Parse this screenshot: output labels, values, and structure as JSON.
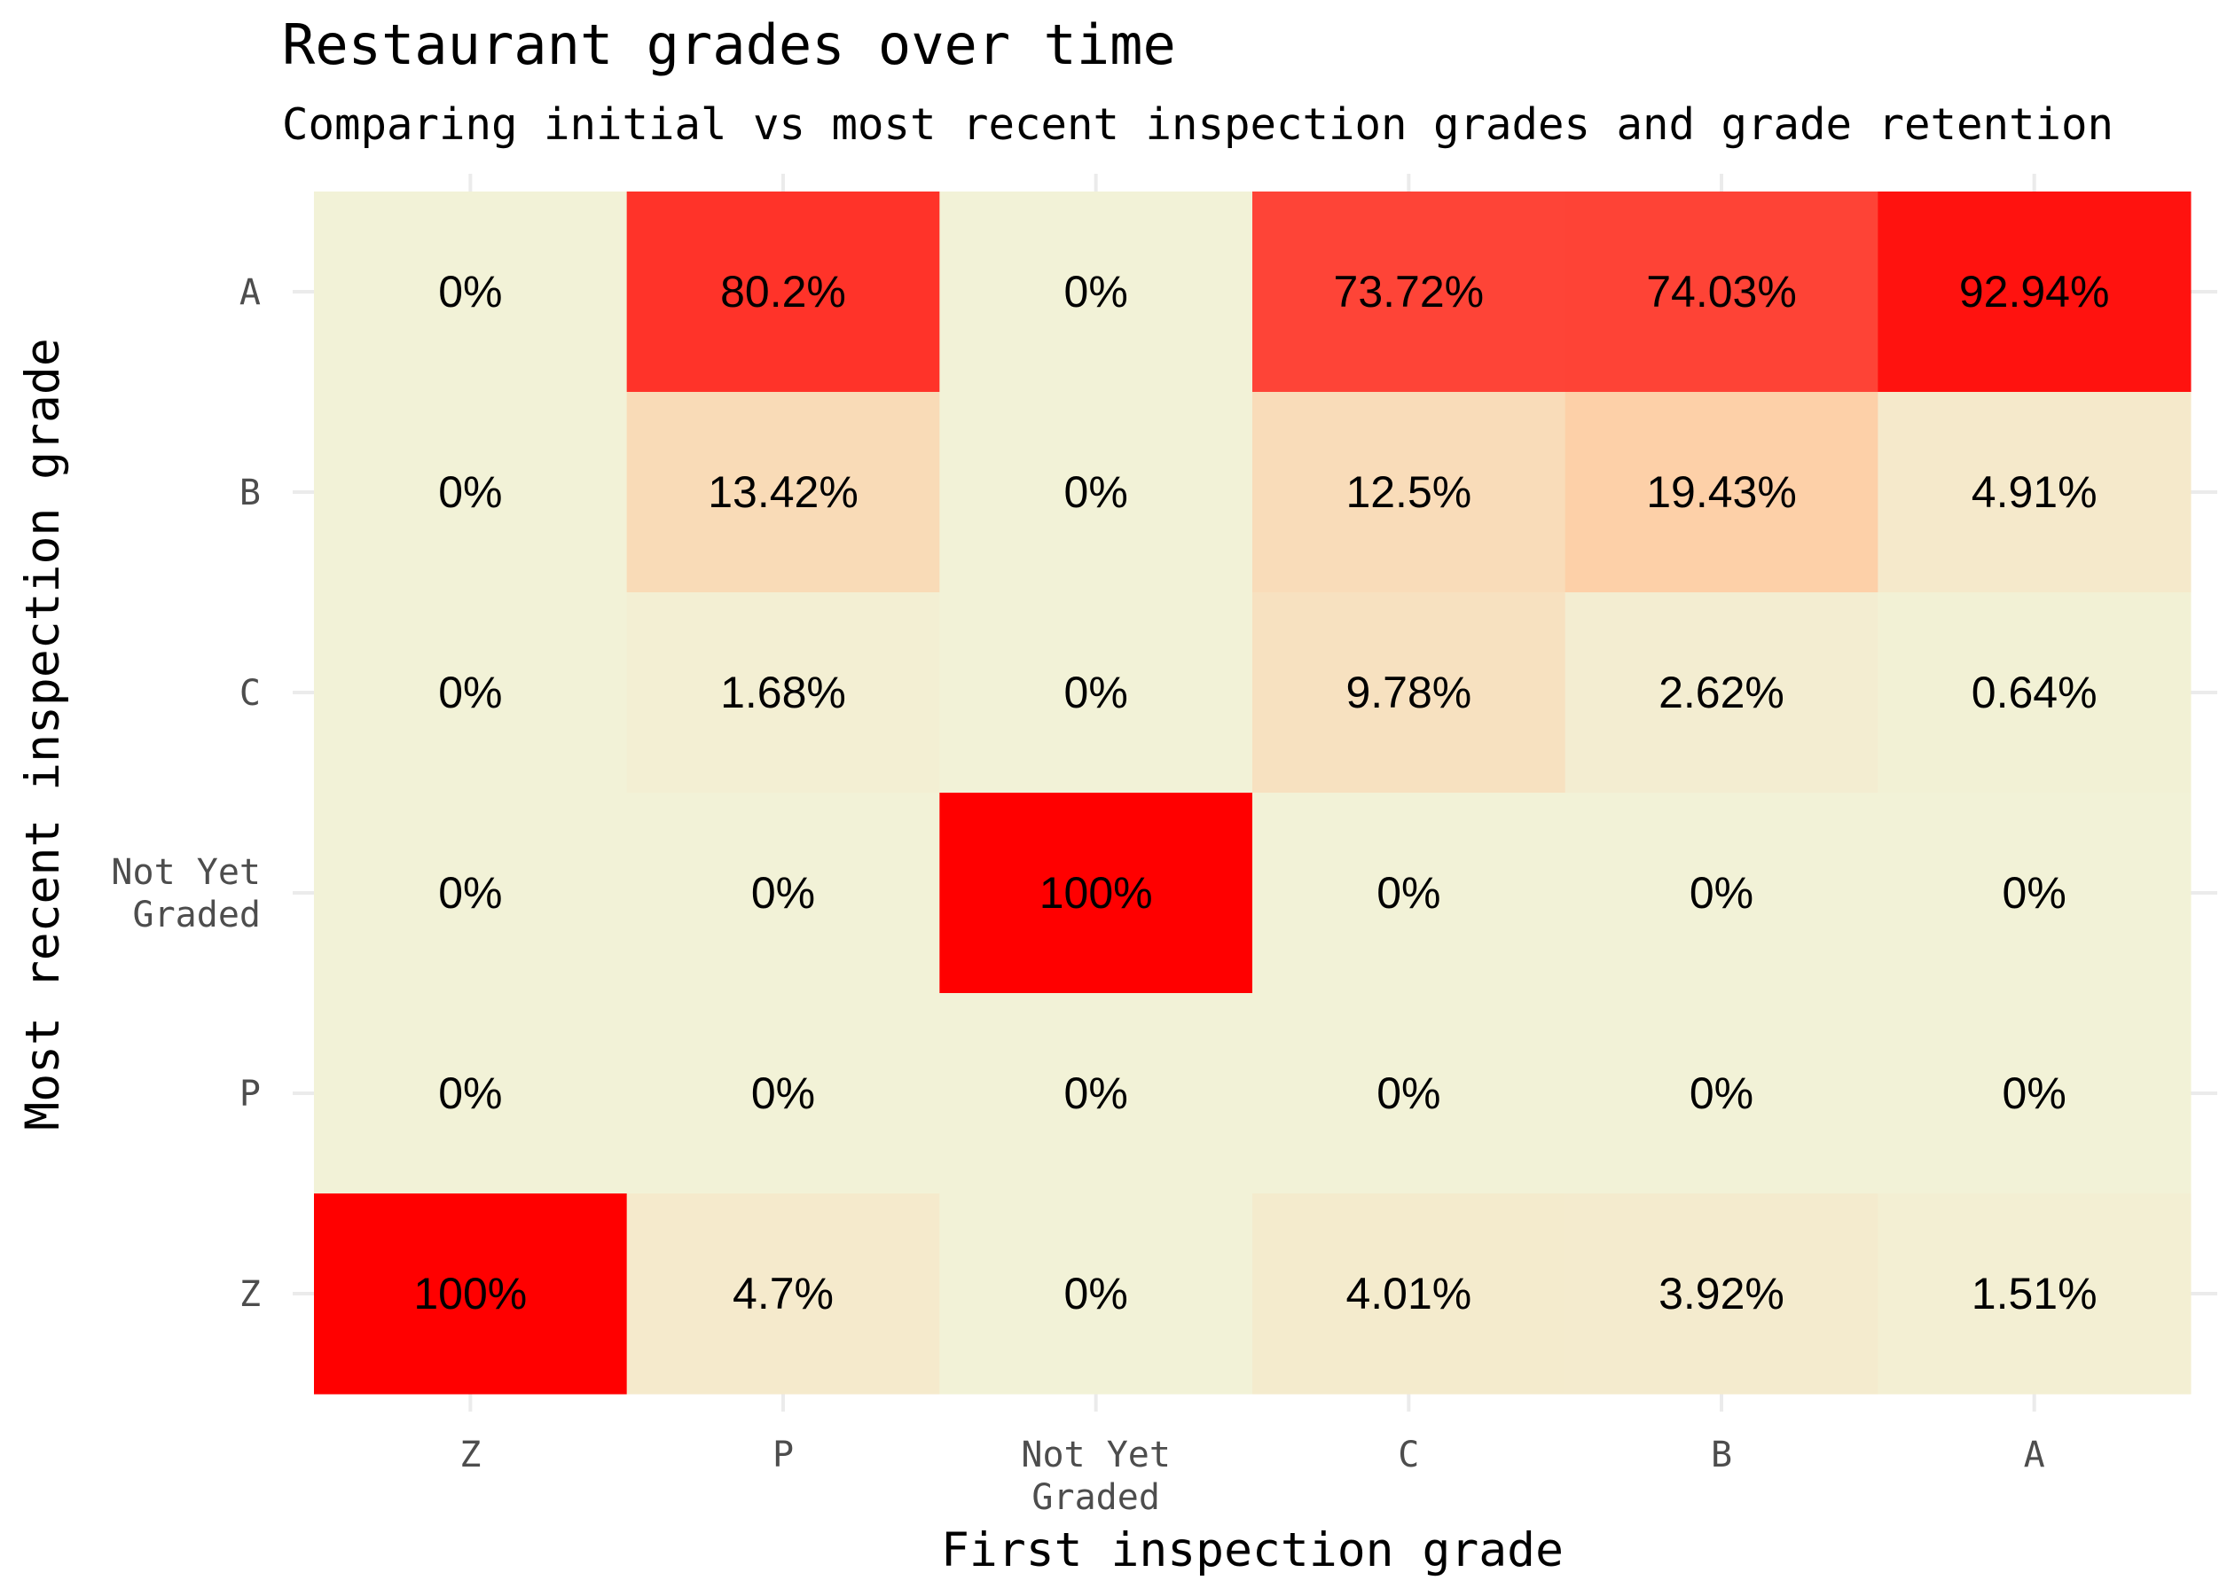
{
  "chart_data": {
    "type": "heatmap",
    "title": "Restaurant grades over time",
    "subtitle": "Comparing initial vs most recent inspection grades and grade retention",
    "xlabel": "First inspection grade",
    "ylabel": "Most recent inspection grade",
    "x_categories": [
      "Z",
      "P",
      "Not Yet Graded",
      "C",
      "B",
      "A"
    ],
    "y_categories": [
      "A",
      "B",
      "C",
      "Not Yet Graded",
      "P",
      "Z"
    ],
    "value_unit": "%",
    "values": [
      [
        0,
        80.2,
        0,
        73.72,
        74.03,
        92.94
      ],
      [
        0,
        13.42,
        0,
        12.5,
        19.43,
        4.91
      ],
      [
        0,
        1.68,
        0,
        9.78,
        2.62,
        0.64
      ],
      [
        0,
        0,
        100,
        0,
        0,
        0
      ],
      [
        0,
        0,
        0,
        0,
        0,
        0
      ],
      [
        100,
        4.7,
        0,
        4.01,
        3.92,
        1.51
      ]
    ],
    "labels": [
      [
        "0%",
        "80.2%",
        "0%",
        "73.72%",
        "74.03%",
        "92.94%"
      ],
      [
        "0%",
        "13.42%",
        "0%",
        "12.5%",
        "19.43%",
        "4.91%"
      ],
      [
        "0%",
        "1.68%",
        "0%",
        "9.78%",
        "2.62%",
        "0.64%"
      ],
      [
        "0%",
        "0%",
        "100%",
        "0%",
        "0%",
        "0%"
      ],
      [
        "0%",
        "0%",
        "0%",
        "0%",
        "0%",
        "0%"
      ],
      [
        "100%",
        "4.7%",
        "0%",
        "4.01%",
        "3.92%",
        "1.51%"
      ]
    ],
    "color_scale": {
      "low": "#f2f2d7",
      "mid": "#fdcfa7",
      "high": "#ff0000"
    },
    "grid": true,
    "legend": "none"
  }
}
